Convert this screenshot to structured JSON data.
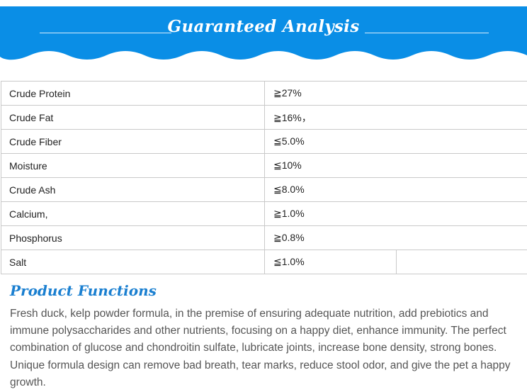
{
  "banner": {
    "title": "Guaranteed Analysis",
    "color": "#0a8ee6"
  },
  "analysis_rows": [
    {
      "name": "Crude Protein",
      "value": "≧27%"
    },
    {
      "name": "Crude Fat",
      "value": "≧16%，"
    },
    {
      "name": "Crude Fiber",
      "value": "≦5.0%"
    },
    {
      "name": "Moisture",
      "value": "≦10%"
    },
    {
      "name": "Crude Ash",
      "value": "≦8.0%"
    },
    {
      "name": "Calcium,",
      "value": "≧1.0%"
    },
    {
      "name": "Phosphorus",
      "value": "≧0.8%"
    },
    {
      "name": "Salt",
      "value": "≦1.0%"
    }
  ],
  "functions": {
    "title": "Product Functions",
    "title_color": "#1a7fd0",
    "text": "Fresh duck, kelp powder formula, in the premise of ensuring adequate nutrition, add prebiotics and immune polysaccharides and other nutrients, focusing on a happy diet, enhance immunity. The perfect combination of glucose and chondroitin sulfate, lubricate joints, increase bone density, strong bones. Unique formula design can remove bad breath, tear marks, reduce stool odor, and give the pet a happy growth."
  }
}
